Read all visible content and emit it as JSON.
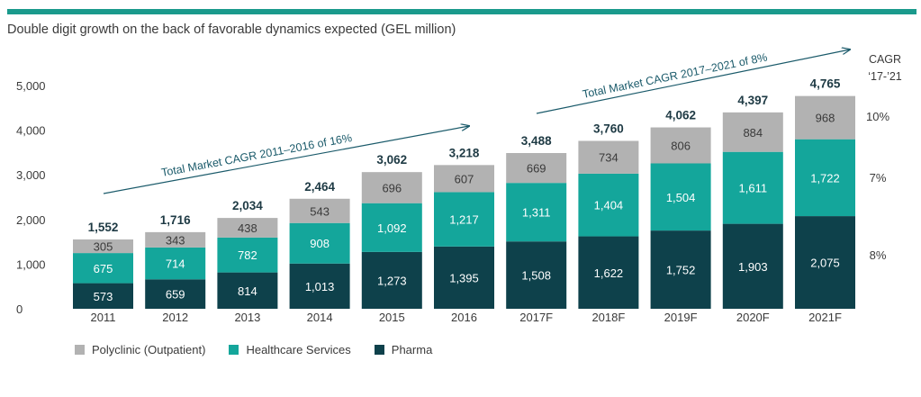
{
  "subtitle": "Double digit growth on the back of favorable dynamics expected (GEL million)",
  "colors": {
    "accent": "#1a9a8c",
    "pharma": "#0e414b",
    "healthcare": "#14a69b",
    "polyclinic": "#b2b2b2"
  },
  "chart_data": {
    "type": "bar",
    "stacked": true,
    "categories": [
      "2011",
      "2012",
      "2013",
      "2014",
      "2015",
      "2016",
      "2017F",
      "2018F",
      "2019F",
      "2020F",
      "2021F"
    ],
    "series": [
      {
        "name": "Pharma",
        "values": [
          573,
          659,
          814,
          1013,
          1273,
          1395,
          1508,
          1622,
          1752,
          1903,
          2075
        ]
      },
      {
        "name": "Healthcare Services",
        "values": [
          675,
          714,
          782,
          908,
          1092,
          1217,
          1311,
          1404,
          1504,
          1611,
          1722
        ]
      },
      {
        "name": "Polyclinic (Outpatient)",
        "values": [
          305,
          343,
          438,
          543,
          696,
          607,
          669,
          734,
          806,
          884,
          968
        ]
      }
    ],
    "value_labels": {
      "Pharma": [
        "573",
        "659",
        "814",
        "1,013",
        "1,273",
        "1,395",
        "1,508",
        "1,622",
        "1,752",
        "1,903",
        "2,075"
      ],
      "Healthcare Services": [
        "675",
        "714",
        "782",
        "908",
        "1,092",
        "1,217",
        "1,311",
        "1,404",
        "1,504",
        "1,611",
        "1,722"
      ],
      "Polyclinic (Outpatient)": [
        "305",
        "343",
        "438",
        "543",
        "696",
        "607",
        "669",
        "734",
        "806",
        "884",
        "968"
      ]
    },
    "totals": [
      1552,
      1716,
      2034,
      2464,
      3062,
      3218,
      3488,
      3760,
      4062,
      4397,
      4765
    ],
    "total_labels": [
      "1,552",
      "1,716",
      "2,034",
      "2,464",
      "3,062",
      "3,218",
      "3,488",
      "3,760",
      "4,062",
      "4,397",
      "4,765"
    ],
    "yticks": [
      0,
      1000,
      2000,
      3000,
      4000,
      5000
    ],
    "ytick_labels": [
      "0",
      "1,000",
      "2,000",
      "3,000",
      "4,000",
      "5,000"
    ],
    "ylim": [
      0,
      5000
    ],
    "grid": false,
    "legend": "bottom-left",
    "annotations": [
      {
        "text": "Total Market CAGR 2011–2016 of 16%",
        "from": "2011",
        "to": "2016"
      },
      {
        "text": "Total Market CAGR 2017–2021 of 8%",
        "from": "2017F",
        "to": "2021F"
      }
    ],
    "cagr": {
      "header": [
        "CAGR",
        "‘17-’21"
      ],
      "rows": [
        {
          "series": "Polyclinic (Outpatient)",
          "label": "10%"
        },
        {
          "series": "Healthcare Services",
          "label": "7%"
        },
        {
          "series": "Pharma",
          "label": "8%"
        }
      ]
    }
  },
  "legend": [
    {
      "label": "Polyclinic (Outpatient)",
      "color": "#b2b2b2"
    },
    {
      "label": "Healthcare Services",
      "color": "#14a69b"
    },
    {
      "label": "Pharma",
      "color": "#0e414b"
    }
  ]
}
